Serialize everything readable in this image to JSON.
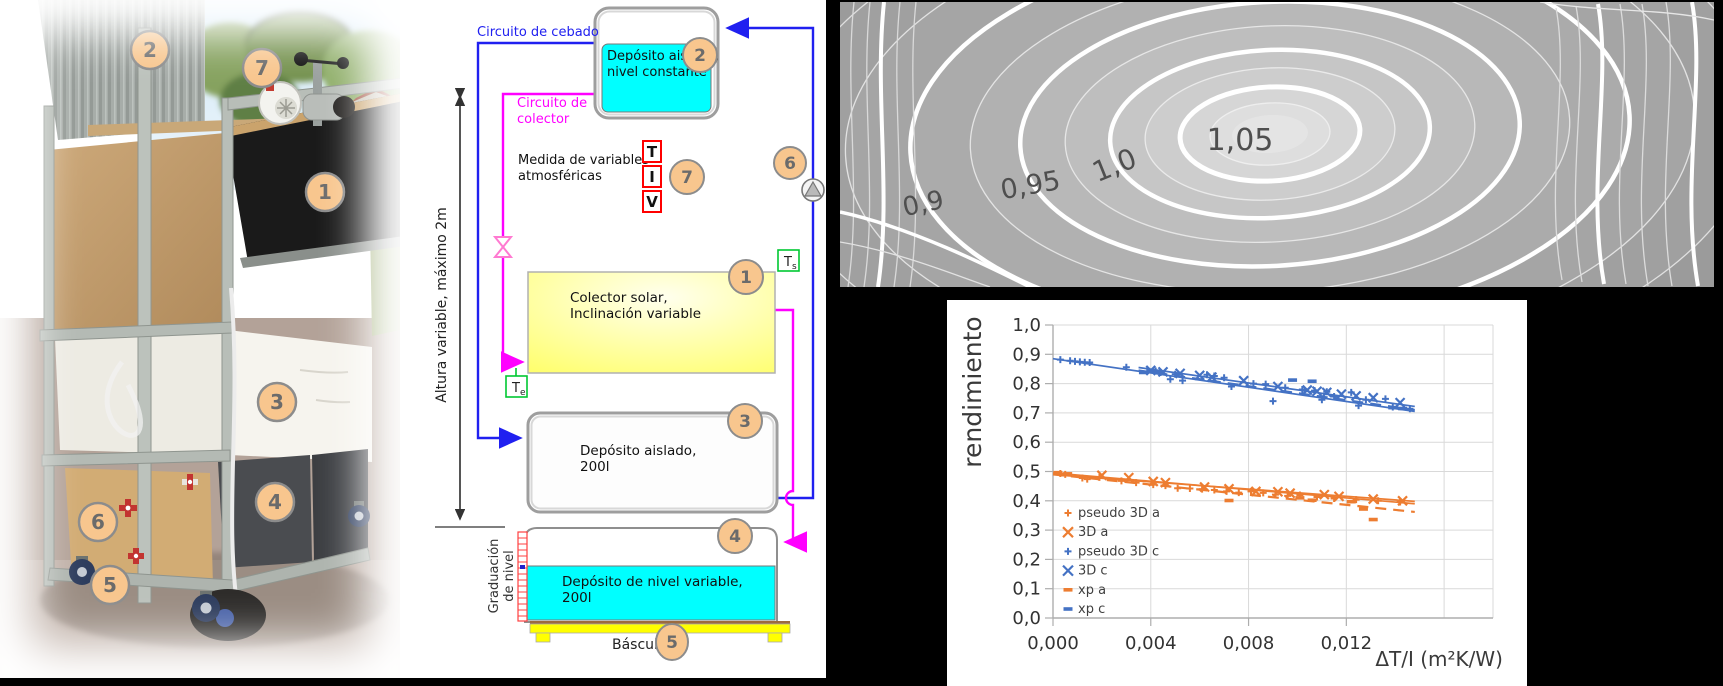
{
  "slide": {
    "background": "#000000"
  },
  "photo": {
    "description": "outdoor photo of solar collector test rig on aluminium frame with instruments",
    "badges": [
      "2",
      "7",
      "1",
      "3",
      "4",
      "6",
      "5"
    ]
  },
  "diagram": {
    "colors": {
      "cebado": "#2020f0",
      "colector": "#ff00ff",
      "agua": "#00ffff",
      "badge": "#f8c68e"
    },
    "labels": {
      "circuito_cebado": "Circuito de cebado",
      "circuito_colector_1": "Circuito de",
      "circuito_colector_2": "colector",
      "tank_constante_1": "Depósito aislado,",
      "tank_constante_2": "nivel constante",
      "medida_1": "Medida de variables",
      "medida_2": "atmosféricas",
      "sensor_T": "T",
      "sensor_I": "I",
      "sensor_V": "V",
      "colector_1": "Colector solar,",
      "colector_2": "Inclinación variable",
      "tank200_1": "Depósito aislado,",
      "tank200_2": "200l",
      "tank_nivel_1": "Depósito de nivel variable,",
      "tank_nivel_2": "200l",
      "graduacion_1": "Graduación",
      "graduacion_2": "de nivel",
      "bascula": "Báscula",
      "altura": "Altura variable, máximo 2m",
      "Ts_base": "T",
      "Ts_sub": "s",
      "Te_base": "T",
      "Te_sub": "e"
    },
    "badges": [
      "2",
      "7",
      "6",
      "1",
      "3",
      "4",
      "5"
    ]
  },
  "contour": {
    "value_labels": [
      "0,9",
      "0,95",
      "1,0",
      "1,05"
    ]
  },
  "chart_data": [
    {
      "type": "heatmap",
      "subtype": "contour-map",
      "description": "grayscale contour map, brightness increasing toward closed maximum at right-center",
      "levels": [
        0.9,
        0.95,
        1.0,
        1.05
      ],
      "level_labels": [
        "0,9",
        "0,95",
        "1,0",
        "1,05"
      ]
    },
    {
      "type": "scatter",
      "title": "",
      "xlabel": "ΔT/I (m²K/W)",
      "ylabel": "rendimiento",
      "xlim": [
        0,
        0.018
      ],
      "ylim": [
        0,
        1
      ],
      "grid": true,
      "legend_position": "inside bottom-left",
      "x_ticks": [
        {
          "v": 0.0,
          "label": "0,000"
        },
        {
          "v": 0.004,
          "label": "0,004"
        },
        {
          "v": 0.008,
          "label": "0,008"
        },
        {
          "v": 0.012,
          "label": "0,012"
        }
      ],
      "x_grid_extra": [
        0.016
      ],
      "y_ticks": [
        {
          "v": 0.0,
          "label": "0,0"
        },
        {
          "v": 0.1,
          "label": "0,1"
        },
        {
          "v": 0.2,
          "label": "0,2"
        },
        {
          "v": 0.3,
          "label": "0,3"
        },
        {
          "v": 0.4,
          "label": "0,4"
        },
        {
          "v": 0.5,
          "label": "0,5"
        },
        {
          "v": 0.6,
          "label": "0,6"
        },
        {
          "v": 0.7,
          "label": "0,7"
        },
        {
          "v": 0.8,
          "label": "0,8"
        },
        {
          "v": 0.9,
          "label": "0,9"
        },
        {
          "v": 1.0,
          "label": "1,0"
        }
      ],
      "series": [
        {
          "name": "pseudo 3D a",
          "marker": "plus",
          "color": "#ED7D31",
          "points": [
            [
              0.0003,
              0.493
            ],
            [
              0.0005,
              0.49
            ],
            [
              0.0012,
              0.478
            ],
            [
              0.0014,
              0.474
            ],
            [
              0.0019,
              0.48
            ],
            [
              0.0028,
              0.468
            ],
            [
              0.0034,
              0.462
            ],
            [
              0.0041,
              0.455
            ],
            [
              0.0046,
              0.452
            ],
            [
              0.0051,
              0.443
            ],
            [
              0.0056,
              0.442
            ],
            [
              0.0061,
              0.44
            ],
            [
              0.0066,
              0.437
            ],
            [
              0.0071,
              0.432
            ],
            [
              0.0076,
              0.428
            ],
            [
              0.0081,
              0.432
            ],
            [
              0.0086,
              0.427
            ],
            [
              0.0091,
              0.421
            ],
            [
              0.0096,
              0.417
            ],
            [
              0.0101,
              0.42
            ],
            [
              0.0108,
              0.413
            ],
            [
              0.0115,
              0.408
            ],
            [
              0.0124,
              0.404
            ],
            [
              0.0133,
              0.4
            ],
            [
              0.0142,
              0.396
            ]
          ]
        },
        {
          "name": "3D a",
          "marker": "x",
          "color": "#ED7D31",
          "points": [
            [
              0.002,
              0.487
            ],
            [
              0.0031,
              0.479
            ],
            [
              0.0041,
              0.466
            ],
            [
              0.0046,
              0.462
            ],
            [
              0.0062,
              0.447
            ],
            [
              0.0072,
              0.441
            ],
            [
              0.0083,
              0.432
            ],
            [
              0.0092,
              0.431
            ],
            [
              0.0097,
              0.426
            ],
            [
              0.0111,
              0.421
            ],
            [
              0.0117,
              0.415
            ],
            [
              0.0131,
              0.406
            ],
            [
              0.0143,
              0.4
            ]
          ]
        },
        {
          "name": "pseudo 3D c",
          "marker": "plus",
          "color": "#4472C4",
          "points": [
            [
              0.0003,
              0.882
            ],
            [
              0.0007,
              0.878
            ],
            [
              0.0009,
              0.876
            ],
            [
              0.0011,
              0.874
            ],
            [
              0.0013,
              0.873
            ],
            [
              0.0015,
              0.872
            ],
            [
              0.003,
              0.856
            ],
            [
              0.0042,
              0.843
            ],
            [
              0.0044,
              0.838
            ],
            [
              0.0048,
              0.815
            ],
            [
              0.005,
              0.832
            ],
            [
              0.0053,
              0.81
            ],
            [
              0.0063,
              0.83
            ],
            [
              0.0066,
              0.826
            ],
            [
              0.007,
              0.82
            ],
            [
              0.0073,
              0.79
            ],
            [
              0.0082,
              0.8
            ],
            [
              0.0087,
              0.798
            ],
            [
              0.009,
              0.74
            ],
            [
              0.0095,
              0.786
            ],
            [
              0.0102,
              0.78
            ],
            [
              0.0107,
              0.776
            ],
            [
              0.011,
              0.745
            ],
            [
              0.0112,
              0.772
            ],
            [
              0.0115,
              0.756
            ],
            [
              0.0122,
              0.77
            ],
            [
              0.0125,
              0.725
            ],
            [
              0.0128,
              0.745
            ],
            [
              0.0136,
              0.748
            ],
            [
              0.0139,
              0.72
            ],
            [
              0.0146,
              0.714
            ]
          ]
        },
        {
          "name": "3D c",
          "marker": "x",
          "color": "#4472C4",
          "points": [
            [
              0.004,
              0.845
            ],
            [
              0.0045,
              0.84
            ],
            [
              0.0052,
              0.835
            ],
            [
              0.006,
              0.828
            ],
            [
              0.0065,
              0.822
            ],
            [
              0.0078,
              0.81
            ],
            [
              0.0092,
              0.79
            ],
            [
              0.0104,
              0.778
            ],
            [
              0.0108,
              0.774
            ],
            [
              0.0112,
              0.77
            ],
            [
              0.0118,
              0.764
            ],
            [
              0.0124,
              0.758
            ],
            [
              0.0131,
              0.752
            ],
            [
              0.0142,
              0.735
            ]
          ]
        },
        {
          "name": "xp a",
          "marker": "dash",
          "color": "#ED7D31",
          "points": [
            [
              0.0002,
              0.496
            ],
            [
              0.0006,
              0.492
            ],
            [
              0.0072,
              0.401
            ],
            [
              0.0101,
              0.41
            ],
            [
              0.0106,
              0.402
            ],
            [
              0.0122,
              0.397
            ],
            [
              0.0127,
              0.372
            ],
            [
              0.0131,
              0.336
            ]
          ]
        },
        {
          "name": "xp c",
          "marker": "dash",
          "color": "#4472C4",
          "points": [
            [
              0.0037,
              0.838
            ],
            [
              0.004,
              0.842
            ],
            [
              0.0043,
              0.84
            ],
            [
              0.0098,
              0.812
            ],
            [
              0.0106,
              0.808
            ],
            [
              0.0139,
              0.718
            ],
            [
              0.0143,
              0.715
            ]
          ]
        }
      ],
      "trendlines": [
        {
          "color": "#4472C4",
          "style": "solid",
          "from": [
            0.0,
            0.885
          ],
          "to": [
            0.0148,
            0.705
          ]
        },
        {
          "color": "#4472C4",
          "style": "solid",
          "from": [
            0.0035,
            0.855
          ],
          "to": [
            0.0148,
            0.722
          ]
        },
        {
          "color": "#4472C4",
          "style": "dashed",
          "from": [
            0.0035,
            0.845
          ],
          "to": [
            0.0148,
            0.71
          ]
        },
        {
          "color": "#ED7D31",
          "style": "solid",
          "from": [
            0.0,
            0.495
          ],
          "to": [
            0.0148,
            0.39
          ]
        },
        {
          "color": "#ED7D31",
          "style": "solid",
          "from": [
            0.0002,
            0.488
          ],
          "to": [
            0.0148,
            0.398
          ]
        },
        {
          "color": "#ED7D31",
          "style": "dashed",
          "from": [
            0.0,
            0.49
          ],
          "to": [
            0.0148,
            0.362
          ]
        }
      ]
    }
  ]
}
